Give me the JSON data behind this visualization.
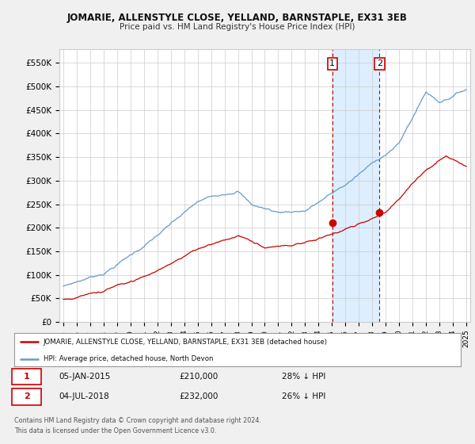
{
  "title": "JOMARIE, ALLENSTYLE CLOSE, YELLAND, BARNSTAPLE, EX31 3EB",
  "subtitle": "Price paid vs. HM Land Registry's House Price Index (HPI)",
  "legend_line1": "JOMARIE, ALLENSTYLE CLOSE, YELLAND, BARNSTAPLE, EX31 3EB (detached house)",
  "legend_line2": "HPI: Average price, detached house, North Devon",
  "annotation1_date": "05-JAN-2015",
  "annotation1_price": "£210,000",
  "annotation1_hpi": "28% ↓ HPI",
  "annotation2_date": "04-JUL-2018",
  "annotation2_price": "£232,000",
  "annotation2_hpi": "26% ↓ HPI",
  "footer1": "Contains HM Land Registry data © Crown copyright and database right 2024.",
  "footer2": "This data is licensed under the Open Government Licence v3.0.",
  "hpi_color": "#6699cc",
  "price_color": "#cc0000",
  "vline_color": "#cc0000",
  "highlight_color": "#ddeeff",
  "background_color": "#f0f0f0",
  "plot_bg_color": "#ffffff",
  "grid_color": "#cccccc",
  "ylim": [
    0,
    580000
  ],
  "yticks": [
    0,
    50000,
    100000,
    150000,
    200000,
    250000,
    300000,
    350000,
    400000,
    450000,
    500000,
    550000
  ],
  "ytick_labels": [
    "£0",
    "£50K",
    "£100K",
    "£150K",
    "£200K",
    "£250K",
    "£300K",
    "£350K",
    "£400K",
    "£450K",
    "£500K",
    "£550K"
  ],
  "sale1_year": 2015.03,
  "sale2_year": 2018.54,
  "sale1_price": 210000,
  "sale2_price": 232000,
  "x_min": 1994.7,
  "x_max": 2025.3
}
